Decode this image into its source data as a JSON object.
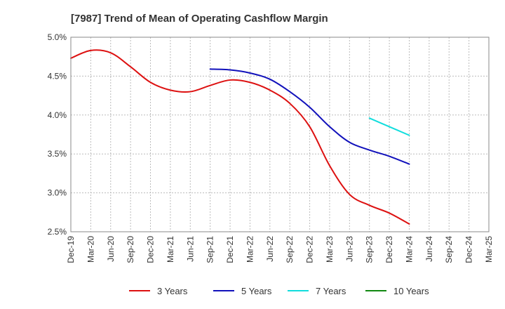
{
  "chart_data": {
    "type": "line",
    "title": "[7987]  Trend of Mean of Operating Cashflow Margin",
    "xlabel": "",
    "ylabel": "",
    "ylim": [
      2.5,
      5.0
    ],
    "yticks": [
      "5.0%",
      "4.5%",
      "4.0%",
      "3.5%",
      "3.0%",
      "2.5%"
    ],
    "ytick_values": [
      5.0,
      4.5,
      4.0,
      3.5,
      3.0,
      2.5
    ],
    "categories": [
      "Dec-19",
      "Mar-20",
      "Jun-20",
      "Sep-20",
      "Dec-20",
      "Mar-21",
      "Jun-21",
      "Sep-21",
      "Dec-21",
      "Mar-22",
      "Jun-22",
      "Sep-22",
      "Dec-22",
      "Mar-23",
      "Jun-23",
      "Sep-23",
      "Dec-23",
      "Mar-24",
      "Jun-24",
      "Sep-24",
      "Dec-24",
      "Mar-25"
    ],
    "grid": true,
    "legend_position": "bottom",
    "series": [
      {
        "name": "3 Years",
        "color": "#dd1111",
        "values": [
          4.73,
          4.83,
          4.8,
          4.62,
          4.42,
          4.32,
          4.3,
          4.38,
          4.45,
          4.42,
          4.32,
          4.15,
          3.85,
          3.35,
          2.98,
          2.84,
          2.74,
          2.6,
          null,
          null,
          null,
          null
        ]
      },
      {
        "name": "5 Years",
        "color": "#1111bb",
        "values": [
          null,
          null,
          null,
          null,
          null,
          null,
          null,
          4.59,
          4.58,
          4.54,
          4.46,
          4.3,
          4.1,
          3.85,
          3.65,
          3.55,
          3.47,
          3.37,
          null,
          null,
          null,
          null
        ]
      },
      {
        "name": "7 Years",
        "color": "#11dddd",
        "values": [
          null,
          null,
          null,
          null,
          null,
          null,
          null,
          null,
          null,
          null,
          null,
          null,
          null,
          null,
          null,
          3.96,
          3.85,
          3.74,
          null,
          null,
          null,
          null
        ]
      },
      {
        "name": "10 Years",
        "color": "#118811",
        "values": [
          null,
          null,
          null,
          null,
          null,
          null,
          null,
          null,
          null,
          null,
          null,
          null,
          null,
          null,
          null,
          null,
          null,
          null,
          null,
          null,
          null,
          null
        ]
      }
    ]
  }
}
